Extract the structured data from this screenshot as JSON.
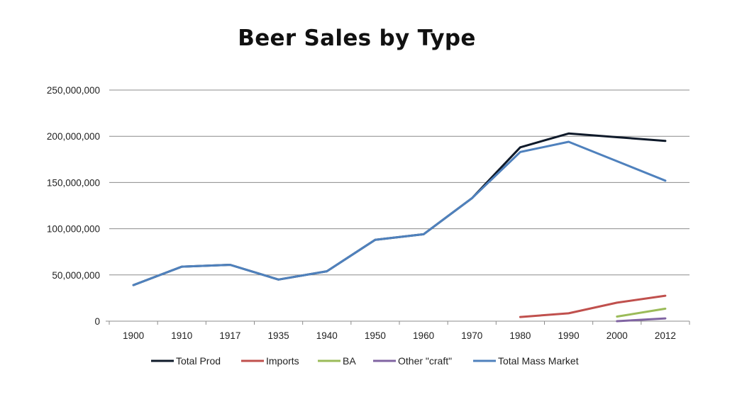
{
  "chart_data": {
    "type": "line",
    "title": "Beer Sales by Type",
    "xlabel": "",
    "ylabel": "",
    "categories": [
      "1900",
      "1910",
      "1917",
      "1935",
      "1940",
      "1950",
      "1960",
      "1970",
      "1980",
      "1990",
      "2000",
      "2012"
    ],
    "ylim": [
      0,
      250000000
    ],
    "yticks": [
      0,
      50000000,
      100000000,
      150000000,
      200000000,
      250000000
    ],
    "ytick_labels": [
      "0",
      "50,000,000",
      "100,000,000",
      "150,000,000",
      "200,000,000",
      "250,000,000"
    ],
    "grid": "horizontal",
    "legend_position": "bottom",
    "series": [
      {
        "name": "Total Prod",
        "color": "#0f1a2a",
        "values": [
          39000000,
          59000000,
          61000000,
          45000000,
          54000000,
          88000000,
          94000000,
          133000000,
          188000000,
          203000000,
          199000000,
          195000000
        ]
      },
      {
        "name": "Imports",
        "color": "#c0504d",
        "values": [
          null,
          null,
          null,
          null,
          null,
          null,
          null,
          null,
          4500000,
          8500000,
          20000000,
          27500000
        ]
      },
      {
        "name": "BA",
        "color": "#9bbb59",
        "values": [
          null,
          null,
          null,
          null,
          null,
          null,
          null,
          null,
          null,
          null,
          5000000,
          13500000
        ]
      },
      {
        "name": "Other \"craft\"",
        "color": "#8064a2",
        "values": [
          null,
          null,
          null,
          null,
          null,
          null,
          null,
          null,
          null,
          null,
          0,
          3000000
        ]
      },
      {
        "name": "Total Mass Market",
        "color": "#4f81bd",
        "values": [
          39000000,
          59000000,
          61000000,
          45000000,
          54000000,
          88000000,
          94000000,
          133000000,
          183000000,
          194000000,
          173000000,
          152000000
        ]
      }
    ]
  }
}
